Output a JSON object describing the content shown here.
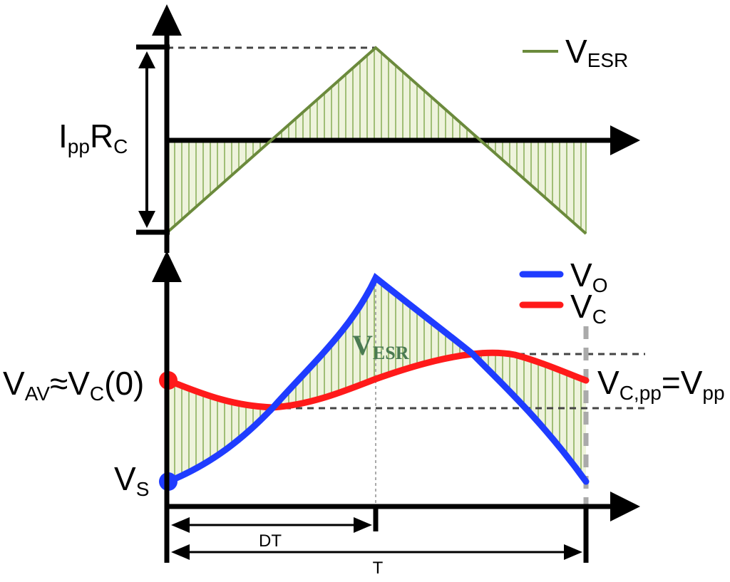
{
  "colors": {
    "esr_line": "#6b8a3c",
    "esr_fill": "#eef3dc",
    "hatch": "#7fa84a",
    "vo": "#1f3cff",
    "vc": "#ff1a1a",
    "axis": "#000000",
    "dash": "#444444",
    "grey_dash": "#aaaaaa",
    "esr_inline_text": "#4a7a52"
  },
  "top_plot": {
    "legend": {
      "main": "V",
      "sub": "ESR"
    },
    "ippRc": {
      "p1": "I",
      "s1": "pp",
      "p2": "R",
      "s2": "C"
    }
  },
  "bottom_plot": {
    "legend_vo": {
      "main": "V",
      "sub": "O"
    },
    "legend_vc": {
      "main": "V",
      "sub": "C"
    },
    "inline_esr": {
      "main": "V",
      "sub": "ESR"
    },
    "vav": {
      "p1": "V",
      "s1": "AV",
      "p2": "≈V",
      "s2": "C",
      "p3": "(0)"
    },
    "vs": {
      "main": "V",
      "sub": "S"
    },
    "vcpp": {
      "p1": "V",
      "s1": "C,pp",
      "p2": "=V",
      "s2": "pp"
    }
  },
  "time_marks": {
    "dt": "DT",
    "t": "T"
  }
}
